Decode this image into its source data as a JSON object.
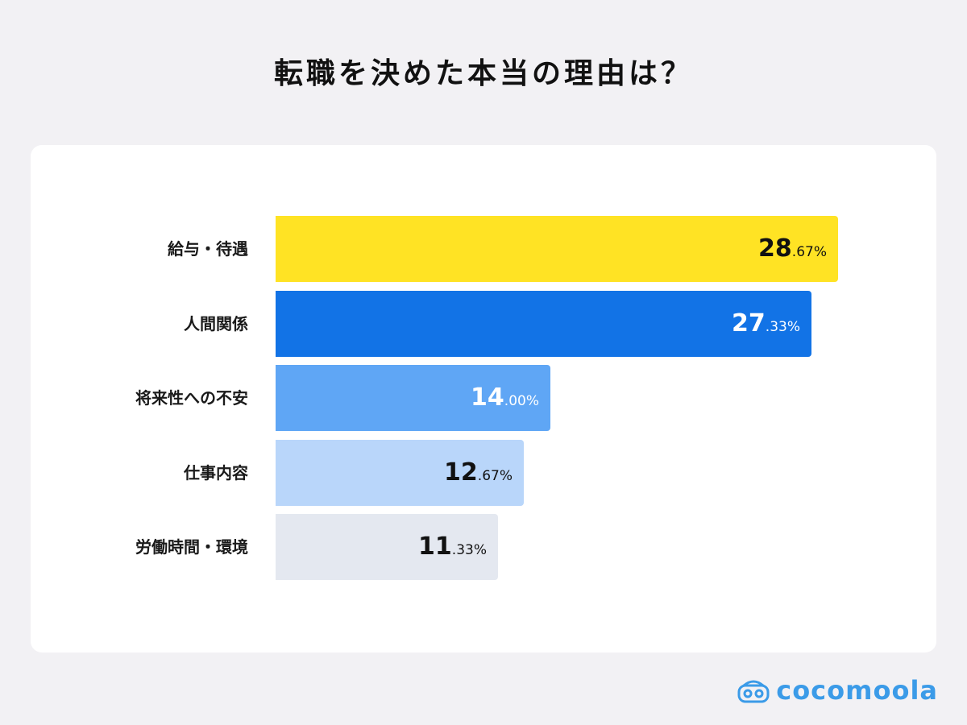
{
  "chart_data": {
    "type": "bar",
    "orientation": "horizontal",
    "title": "転職を決めた本当の理由は？",
    "categories": [
      "給与・待遇",
      "人間関係",
      "将来性への不安",
      "仕事内容",
      "労働時間・環境"
    ],
    "values": [
      28.67,
      27.33,
      14.0,
      12.67,
      11.33
    ],
    "value_labels": [
      {
        "int": "28",
        "dec": ".67%"
      },
      {
        "int": "27",
        "dec": ".33%"
      },
      {
        "int": "14",
        "dec": ".00%"
      },
      {
        "int": "12",
        "dec": ".67%"
      },
      {
        "int": "11",
        "dec": ".33%"
      }
    ],
    "bar_colors": [
      "#ffe324",
      "#1273e6",
      "#5fa6f5",
      "#b9d6fa",
      "#e4e8f0"
    ],
    "label_colors": [
      "#111111",
      "#ffffff",
      "#ffffff",
      "#111111",
      "#111111"
    ],
    "xlim": [
      0,
      28.67
    ],
    "grid": false,
    "legend": "none"
  },
  "brand": {
    "name": "cocomoola",
    "icon": "cocomoola-logo-icon",
    "color": "#3b9be8"
  }
}
